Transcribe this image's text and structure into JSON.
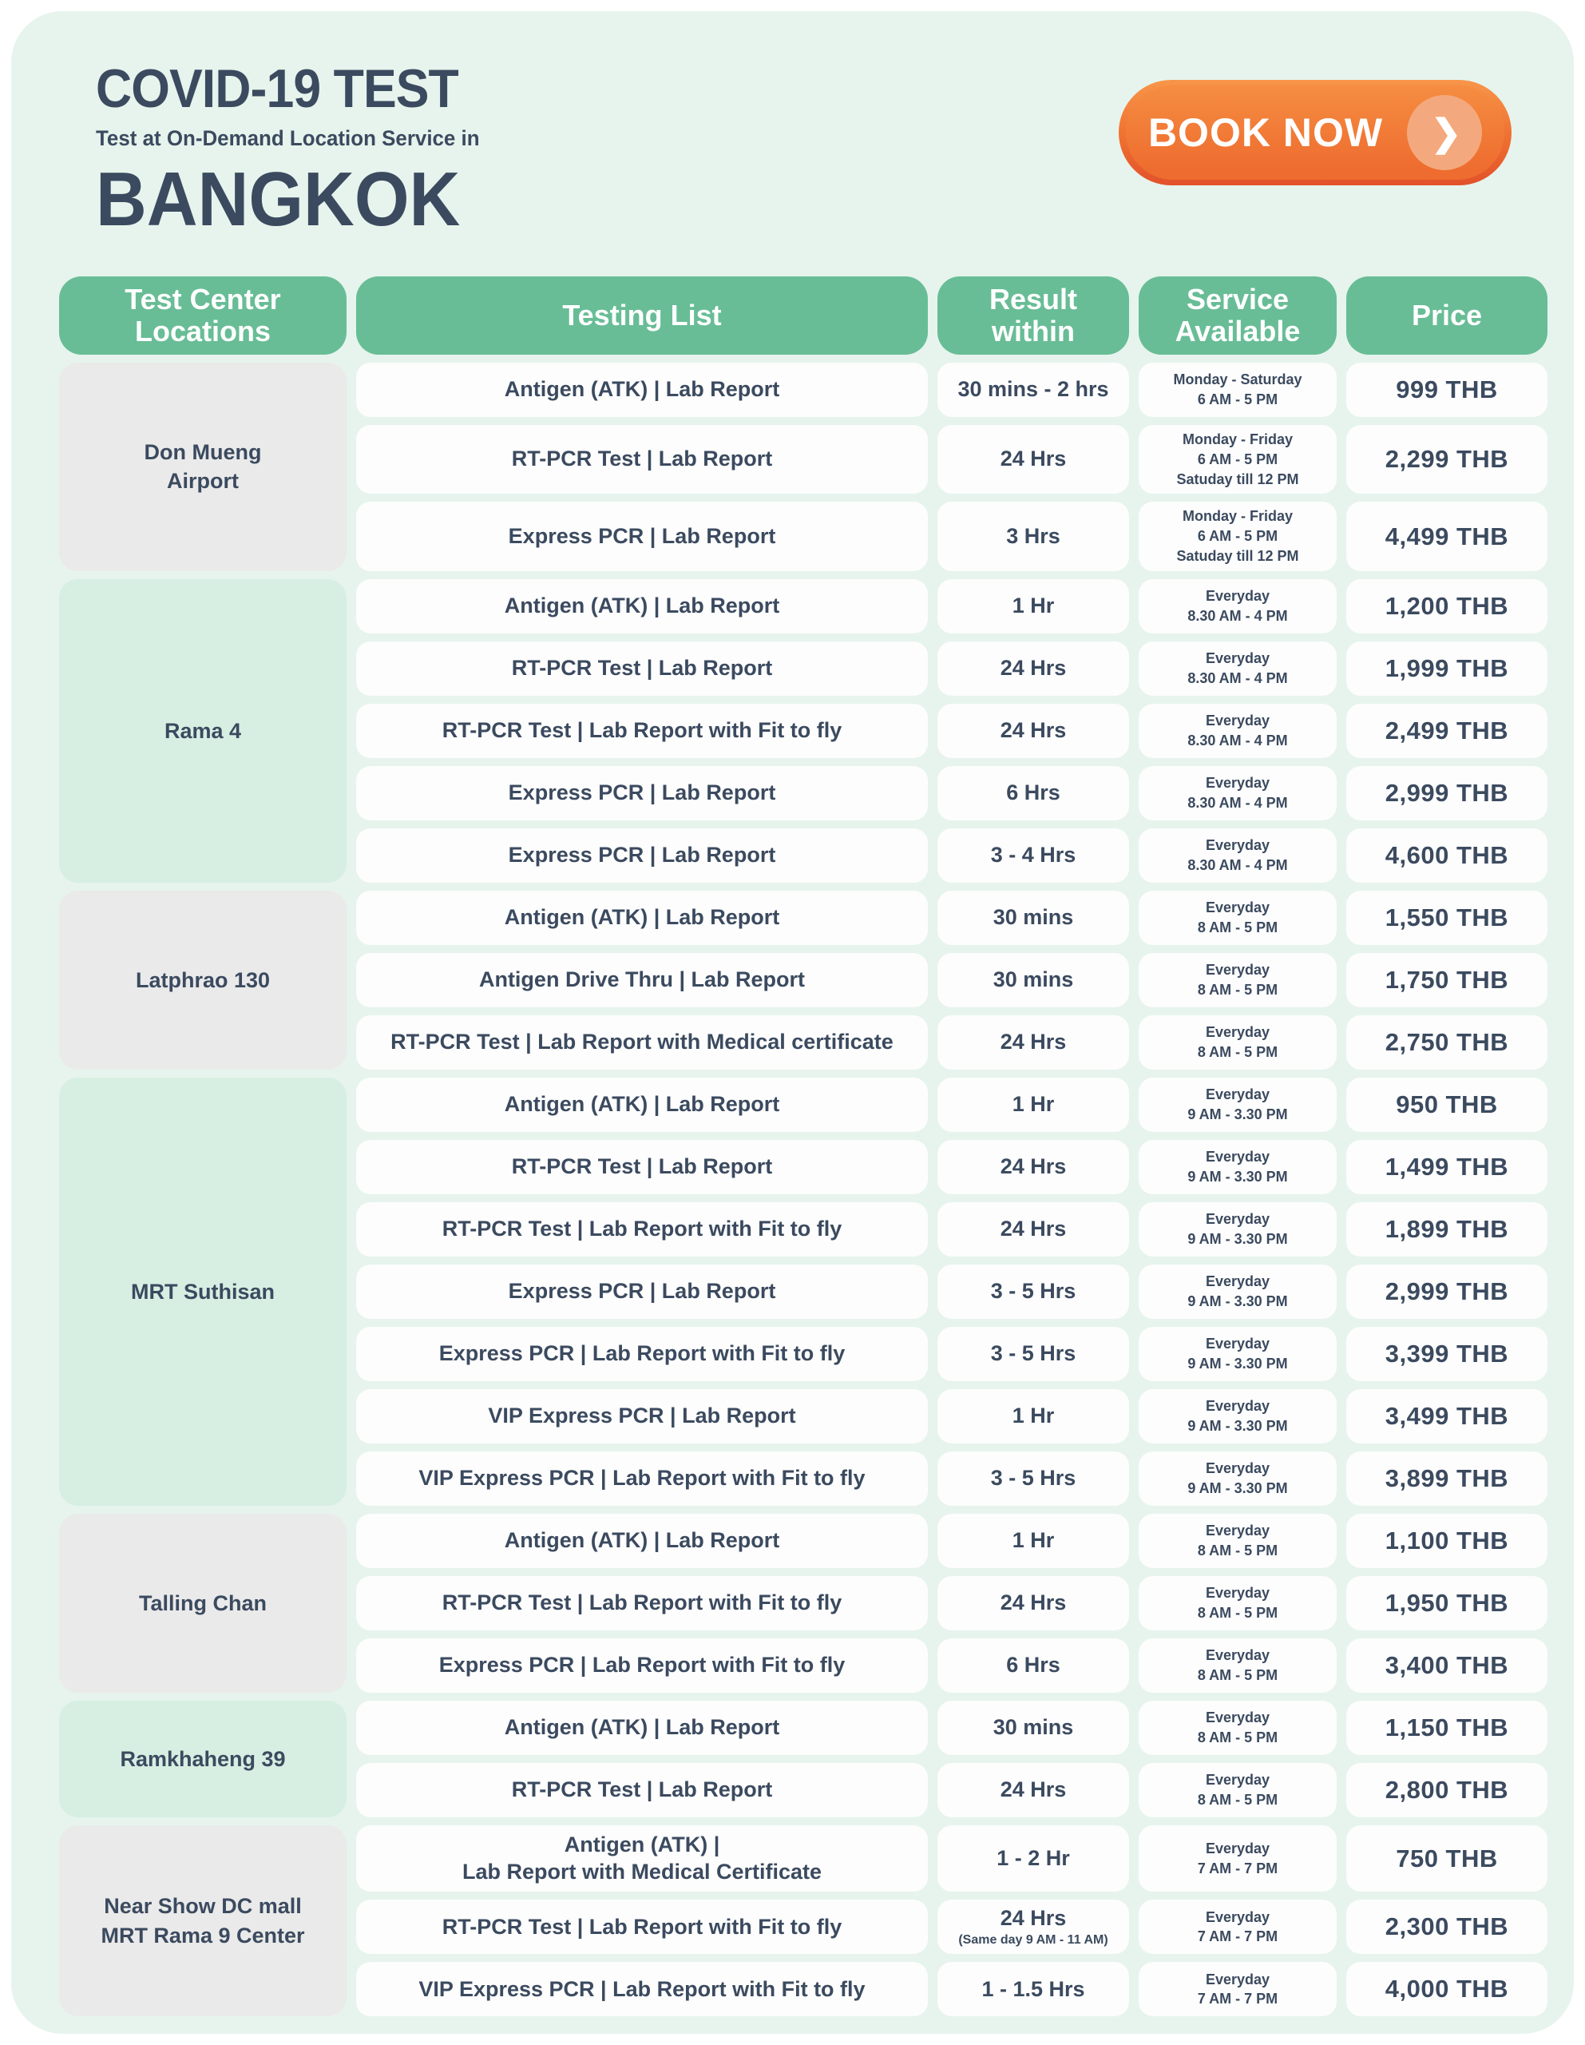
{
  "header": {
    "title": "COVID-19 TEST",
    "subtitle": "Test at On-Demand Location Service in",
    "city": "BANGKOK",
    "book_now_label": "BOOK NOW",
    "book_now_icon": "chevron-right"
  },
  "colors": {
    "accent_green": "#68bd96",
    "green_tint": "#d6efe2",
    "gray_tint": "#eaeaea",
    "mint_background": "#e6f4ed",
    "button_orange": "#ee6c2f",
    "button_orange_dark": "#e2512b",
    "button_circle": "#f3a97d",
    "dark_text": "#3b4a5f"
  },
  "table": {
    "columns": [
      {
        "key": "test-center-locations",
        "lines": [
          "Test Center",
          "Locations"
        ]
      },
      {
        "key": "testing-list",
        "lines": [
          "Testing List"
        ]
      },
      {
        "key": "result-within",
        "lines": [
          "Result",
          "within"
        ]
      },
      {
        "key": "service-available",
        "lines": [
          "Service",
          "Available"
        ]
      },
      {
        "key": "price",
        "lines": [
          "Price"
        ]
      }
    ],
    "sections": [
      {
        "location_lines": [
          "Don Mueng",
          "Airport"
        ],
        "tint": "gray",
        "rows": [
          {
            "test_lines": [
              "Antigen (ATK) | Lab Report"
            ],
            "result": "30 mins - 2 hrs",
            "service_lines": [
              "Monday - Saturday",
              "6 AM - 5 PM"
            ],
            "price": "999 THB"
          },
          {
            "test_lines": [
              "RT-PCR Test | Lab Report"
            ],
            "result": "24 Hrs",
            "service_lines": [
              "Monday - Friday",
              "6 AM - 5 PM",
              "Satuday till 12 PM"
            ],
            "price": "2,299 THB"
          },
          {
            "test_lines": [
              "Express PCR | Lab Report"
            ],
            "result": "3 Hrs",
            "service_lines": [
              "Monday - Friday",
              "6 AM - 5 PM",
              "Satuday till 12 PM"
            ],
            "price": "4,499 THB"
          }
        ]
      },
      {
        "location_lines": [
          "Rama 4"
        ],
        "tint": "green",
        "rows": [
          {
            "test_lines": [
              "Antigen (ATK) | Lab Report"
            ],
            "result": "1 Hr",
            "service_lines": [
              "Everyday",
              "8.30 AM - 4 PM"
            ],
            "price": "1,200 THB"
          },
          {
            "test_lines": [
              "RT-PCR Test | Lab Report"
            ],
            "result": "24 Hrs",
            "service_lines": [
              "Everyday",
              "8.30 AM - 4 PM"
            ],
            "price": "1,999 THB"
          },
          {
            "test_lines": [
              "RT-PCR Test | Lab Report with Fit to fly"
            ],
            "result": "24 Hrs",
            "service_lines": [
              "Everyday",
              "8.30 AM - 4 PM"
            ],
            "price": "2,499 THB"
          },
          {
            "test_lines": [
              "Express PCR | Lab Report"
            ],
            "result": "6 Hrs",
            "service_lines": [
              "Everyday",
              "8.30 AM - 4 PM"
            ],
            "price": "2,999 THB"
          },
          {
            "test_lines": [
              "Express PCR | Lab Report"
            ],
            "result": "3 - 4 Hrs",
            "service_lines": [
              "Everyday",
              "8.30 AM - 4 PM"
            ],
            "price": "4,600 THB"
          }
        ]
      },
      {
        "location_lines": [
          "Latphrao 130"
        ],
        "tint": "gray",
        "rows": [
          {
            "test_lines": [
              "Antigen (ATK) | Lab Report"
            ],
            "result": "30 mins",
            "service_lines": [
              "Everyday",
              "8 AM - 5 PM"
            ],
            "price": "1,550 THB"
          },
          {
            "test_lines": [
              "Antigen Drive Thru | Lab Report"
            ],
            "result": "30 mins",
            "service_lines": [
              "Everyday",
              "8 AM - 5 PM"
            ],
            "price": "1,750 THB"
          },
          {
            "test_lines": [
              "RT-PCR Test | Lab Report with Medical certificate"
            ],
            "result": "24 Hrs",
            "service_lines": [
              "Everyday",
              "8 AM - 5 PM"
            ],
            "price": "2,750 THB"
          }
        ]
      },
      {
        "location_lines": [
          "MRT Suthisan"
        ],
        "tint": "green",
        "rows": [
          {
            "test_lines": [
              "Antigen (ATK) | Lab Report"
            ],
            "result": "1 Hr",
            "service_lines": [
              "Everyday",
              "9 AM - 3.30 PM"
            ],
            "price": "950 THB"
          },
          {
            "test_lines": [
              "RT-PCR Test | Lab Report"
            ],
            "result": "24 Hrs",
            "service_lines": [
              "Everyday",
              "9 AM - 3.30 PM"
            ],
            "price": "1,499 THB"
          },
          {
            "test_lines": [
              "RT-PCR Test | Lab Report with Fit to fly"
            ],
            "result": "24 Hrs",
            "service_lines": [
              "Everyday",
              "9 AM - 3.30 PM"
            ],
            "price": "1,899 THB"
          },
          {
            "test_lines": [
              "Express PCR | Lab Report"
            ],
            "result": "3 - 5 Hrs",
            "service_lines": [
              "Everyday",
              "9 AM - 3.30 PM"
            ],
            "price": "2,999 THB"
          },
          {
            "test_lines": [
              "Express PCR | Lab Report with Fit to fly"
            ],
            "result": "3 - 5 Hrs",
            "service_lines": [
              "Everyday",
              "9 AM - 3.30 PM"
            ],
            "price": "3,399 THB"
          },
          {
            "test_lines": [
              "VIP Express PCR | Lab Report"
            ],
            "result": "1 Hr",
            "service_lines": [
              "Everyday",
              "9 AM - 3.30 PM"
            ],
            "price": "3,499 THB"
          },
          {
            "test_lines": [
              "VIP Express PCR | Lab Report with Fit to fly"
            ],
            "result": "3 - 5 Hrs",
            "service_lines": [
              "Everyday",
              "9 AM - 3.30 PM"
            ],
            "price": "3,899 THB"
          }
        ]
      },
      {
        "location_lines": [
          "Talling Chan"
        ],
        "tint": "gray",
        "rows": [
          {
            "test_lines": [
              "Antigen (ATK) | Lab Report"
            ],
            "result": "1 Hr",
            "service_lines": [
              "Everyday",
              "8 AM - 5 PM"
            ],
            "price": "1,100 THB"
          },
          {
            "test_lines": [
              "RT-PCR Test | Lab Report with Fit to fly"
            ],
            "result": "24 Hrs",
            "service_lines": [
              "Everyday",
              "8 AM - 5 PM"
            ],
            "price": "1,950 THB"
          },
          {
            "test_lines": [
              "Express PCR | Lab Report with Fit to fly"
            ],
            "result": "6 Hrs",
            "service_lines": [
              "Everyday",
              "8 AM - 5 PM"
            ],
            "price": "3,400 THB"
          }
        ]
      },
      {
        "location_lines": [
          "Ramkhaheng 39"
        ],
        "tint": "green",
        "rows": [
          {
            "test_lines": [
              "Antigen (ATK) | Lab Report"
            ],
            "result": "30 mins",
            "service_lines": [
              "Everyday",
              "8 AM - 5 PM"
            ],
            "price": "1,150 THB"
          },
          {
            "test_lines": [
              "RT-PCR Test | Lab Report"
            ],
            "result": "24 Hrs",
            "service_lines": [
              "Everyday",
              "8 AM - 5 PM"
            ],
            "price": "2,800 THB"
          }
        ]
      },
      {
        "location_lines": [
          "Near Show DC mall",
          "MRT Rama 9 Center"
        ],
        "tint": "gray",
        "rows": [
          {
            "test_lines": [
              "Antigen (ATK) |",
              "Lab Report with Medical Certificate"
            ],
            "result": "1 - 2 Hr",
            "service_lines": [
              "Everyday",
              "7 AM - 7 PM"
            ],
            "price": "750 THB"
          },
          {
            "test_lines": [
              "RT-PCR Test | Lab Report with Fit to fly"
            ],
            "result": "24 Hrs",
            "result_note": "(Same day 9 AM - 11 AM)",
            "service_lines": [
              "Everyday",
              "7 AM - 7 PM"
            ],
            "price": "2,300 THB"
          },
          {
            "test_lines": [
              "VIP Express PCR | Lab Report with Fit to fly"
            ],
            "result": "1 - 1.5 Hrs",
            "service_lines": [
              "Everyday",
              "7 AM - 7 PM"
            ],
            "price": "4,000 THB"
          }
        ]
      }
    ]
  }
}
